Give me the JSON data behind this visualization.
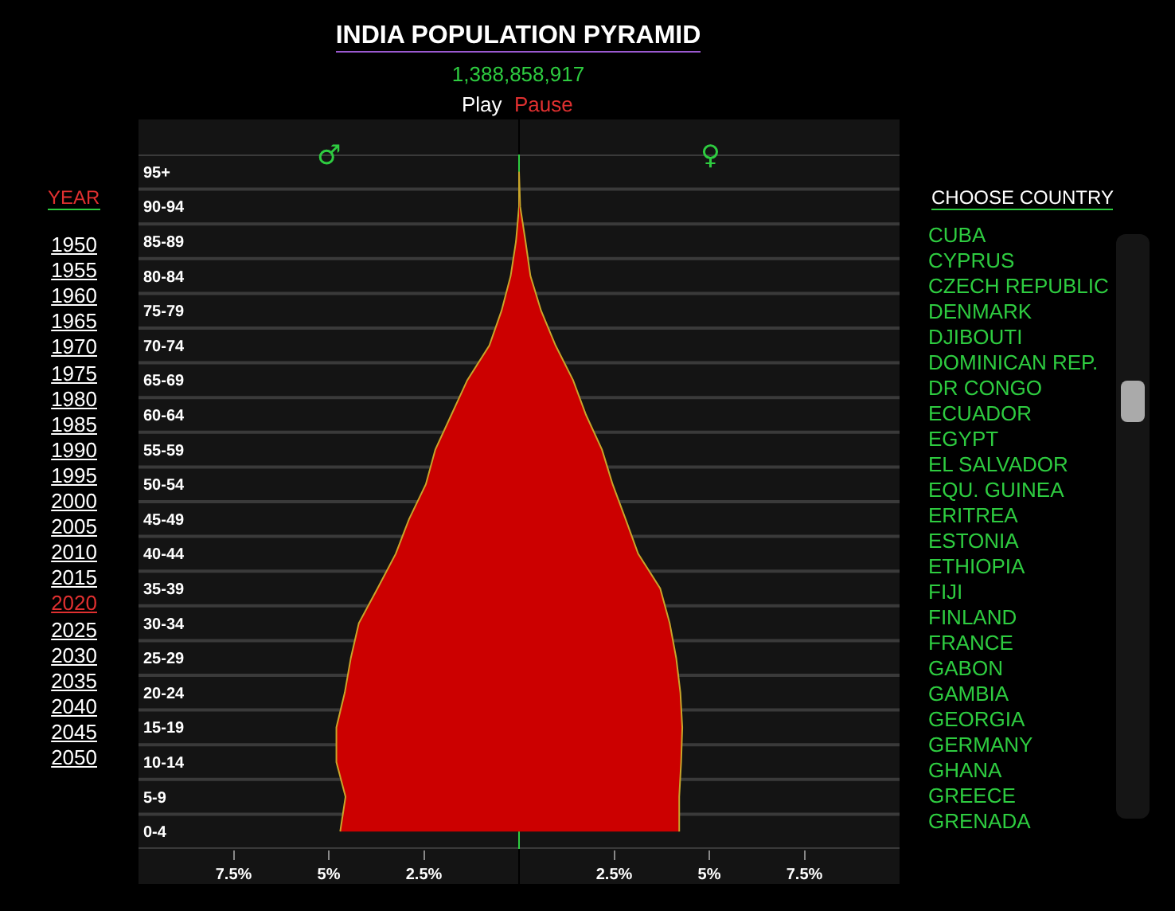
{
  "chart_data": {
    "type": "area",
    "orientation": "horizontal",
    "title": "INDIA POPULATION PYRAMID",
    "subtitle": "1,388,858,917",
    "categories": [
      "95+",
      "90-94",
      "85-89",
      "80-84",
      "75-79",
      "70-74",
      "65-69",
      "60-64",
      "55-59",
      "50-54",
      "45-49",
      "40-44",
      "35-39",
      "30-34",
      "25-29",
      "20-24",
      "15-19",
      "10-14",
      "5-9",
      "0-4"
    ],
    "series": [
      {
        "color": "#cc0000",
        "values": [
          0,
          0,
          -0.08,
          -0.22,
          -0.46,
          -0.78,
          -1.36,
          -1.78,
          -2.2,
          -2.45,
          -2.89,
          -3.24,
          -3.72,
          -4.21,
          -4.42,
          -4.58,
          -4.8,
          -4.8,
          -4.56,
          -4.7
        ]
      },
      {
        "color": "#cc0000",
        "values": [
          0,
          0.03,
          0.17,
          0.3,
          0.58,
          0.96,
          1.42,
          1.76,
          2.18,
          2.46,
          2.8,
          3.13,
          3.71,
          3.96,
          4.13,
          4.24,
          4.29,
          4.26,
          4.21,
          4.21
        ]
      }
    ],
    "ref_lines": [
      {
        "axis": "x",
        "value": 0,
        "color": "#2ecc40"
      }
    ],
    "xlim": [
      -10,
      10
    ],
    "xticks": [
      {
        "value": -7.5,
        "label": "7.5%"
      },
      {
        "value": -5,
        "label": "5%"
      },
      {
        "value": -2.5,
        "label": "2.5%"
      },
      {
        "value": 2.5,
        "label": "2.5%"
      },
      {
        "value": 5,
        "label": "5%"
      },
      {
        "value": 7.5,
        "label": "7.5%"
      }
    ],
    "grid": "y",
    "annotations": [
      "Play",
      "Pause",
      "♂",
      "♀",
      "YEAR",
      "1950",
      "1955",
      "1960",
      "1965",
      "1970",
      "1975",
      "1980",
      "1985",
      "1990",
      "1995",
      "2000",
      "2005",
      "2010",
      "2015",
      "2020",
      "2025",
      "2030",
      "2035",
      "2040",
      "2045",
      "2050",
      "CHOOSE COUNTRY",
      "CUBA",
      "CYPRUS",
      "CZECH REPUBLIC",
      "DENMARK",
      "DJIBOUTI",
      "DOMINICAN REP.",
      "DR CONGO",
      "ECUADOR",
      "EGYPT",
      "EL SALVADOR",
      "EQU. GUINEA",
      "ERITREA",
      "ESTONIA",
      "ETHIOPIA",
      "FIJI",
      "FINLAND",
      "FRANCE",
      "GABON",
      "GAMBIA",
      "GEORGIA",
      "GERMANY",
      "GHANA",
      "GREECE",
      "GRENADA"
    ]
  }
}
